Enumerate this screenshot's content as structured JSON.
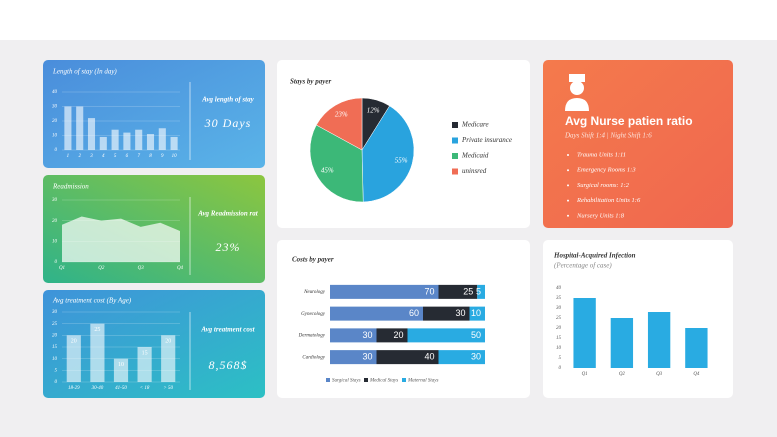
{
  "chart_data": [
    {
      "type": "bar",
      "title": "Length of stay (In day)",
      "categories": [
        "1",
        "2",
        "3",
        "4",
        "5",
        "6",
        "7",
        "8",
        "9",
        "10"
      ],
      "values": [
        30,
        30,
        22,
        9,
        14,
        12,
        14,
        11,
        15,
        9
      ],
      "ylim": [
        0,
        40
      ],
      "yticks": [
        0,
        10,
        20,
        30,
        40
      ],
      "color": "#ffffff",
      "grid": true
    },
    {
      "type": "area",
      "title": "Readmission",
      "categories": [
        "Q1",
        null,
        "Q2",
        null,
        "Q3",
        null,
        "Q4"
      ],
      "values": [
        18,
        22,
        20,
        21,
        17,
        19,
        15
      ],
      "ylim": [
        0,
        30
      ],
      "yticks": [
        0,
        10,
        20,
        30
      ],
      "color": "#ffffff",
      "grid": true
    },
    {
      "type": "bar",
      "title": "Avg treatment cost (By Age)",
      "categories": [
        "18-29",
        "30-40",
        "41-50",
        "< 18",
        "> 50"
      ],
      "values": [
        20,
        25,
        10,
        15,
        20
      ],
      "ylim": [
        0,
        30
      ],
      "yticks": [
        0,
        5,
        10,
        15,
        20,
        25,
        30
      ],
      "color": "#ffffff",
      "grid": true,
      "data_labels": true
    },
    {
      "type": "pie",
      "title": "Stays by payer",
      "categories": [
        "Medicare",
        "Private insurance",
        "Medicaid",
        "uninsred"
      ],
      "values": [
        12,
        55,
        45,
        23
      ],
      "value_labels": [
        "12%",
        "55%",
        "45%",
        "23%"
      ],
      "colors": [
        "#262b33",
        "#29a3de",
        "#3cb878",
        "#f06d55"
      ]
    },
    {
      "type": "stacked_hbar",
      "title": "Costs by payer",
      "categories": [
        "Neurology",
        "Gynecology",
        "Dermatology",
        "Cardiology"
      ],
      "xlim": [
        0,
        100
      ],
      "series": [
        {
          "name": "Surgical Stays",
          "color": "#5a86c8",
          "values": [
            70,
            60,
            30,
            30
          ]
        },
        {
          "name": "Medical Stays",
          "color": "#262b33",
          "values": [
            25,
            30,
            20,
            40
          ]
        },
        {
          "name": "Maternal Stays",
          "color": "#29abe2",
          "values": [
            5,
            10,
            50,
            30
          ]
        }
      ]
    },
    {
      "type": "bar",
      "title": "Hospital-Acquired Infection",
      "subtitle": "(Percentage of case)",
      "categories": [
        "Q1",
        "Q2",
        "Q3",
        "Q4"
      ],
      "values": [
        35,
        25,
        28,
        20
      ],
      "ylim": [
        0,
        40
      ],
      "yticks": [
        0,
        5,
        10,
        15,
        20,
        25,
        30,
        35,
        40
      ],
      "color": "#29abe2",
      "grid": false
    }
  ],
  "kpis": [
    {
      "label": "Avg length of stay",
      "value": "30 Days"
    },
    {
      "label": "Avg Readmission rat",
      "value": "23%"
    },
    {
      "label": "Avg treatment cost",
      "value": "8,568$"
    }
  ],
  "nurse": {
    "title": "Avg Nurse patien ratio",
    "subtitle": "Days Shift 1:4  |  Night Shift 1:6",
    "items": [
      "Trauma Units 1:11",
      "Emergency Rooms 1:3",
      "Surgical rooms: 1:2",
      "Rehabilitation Units 1:6",
      "Nursery Units 1:8"
    ]
  }
}
